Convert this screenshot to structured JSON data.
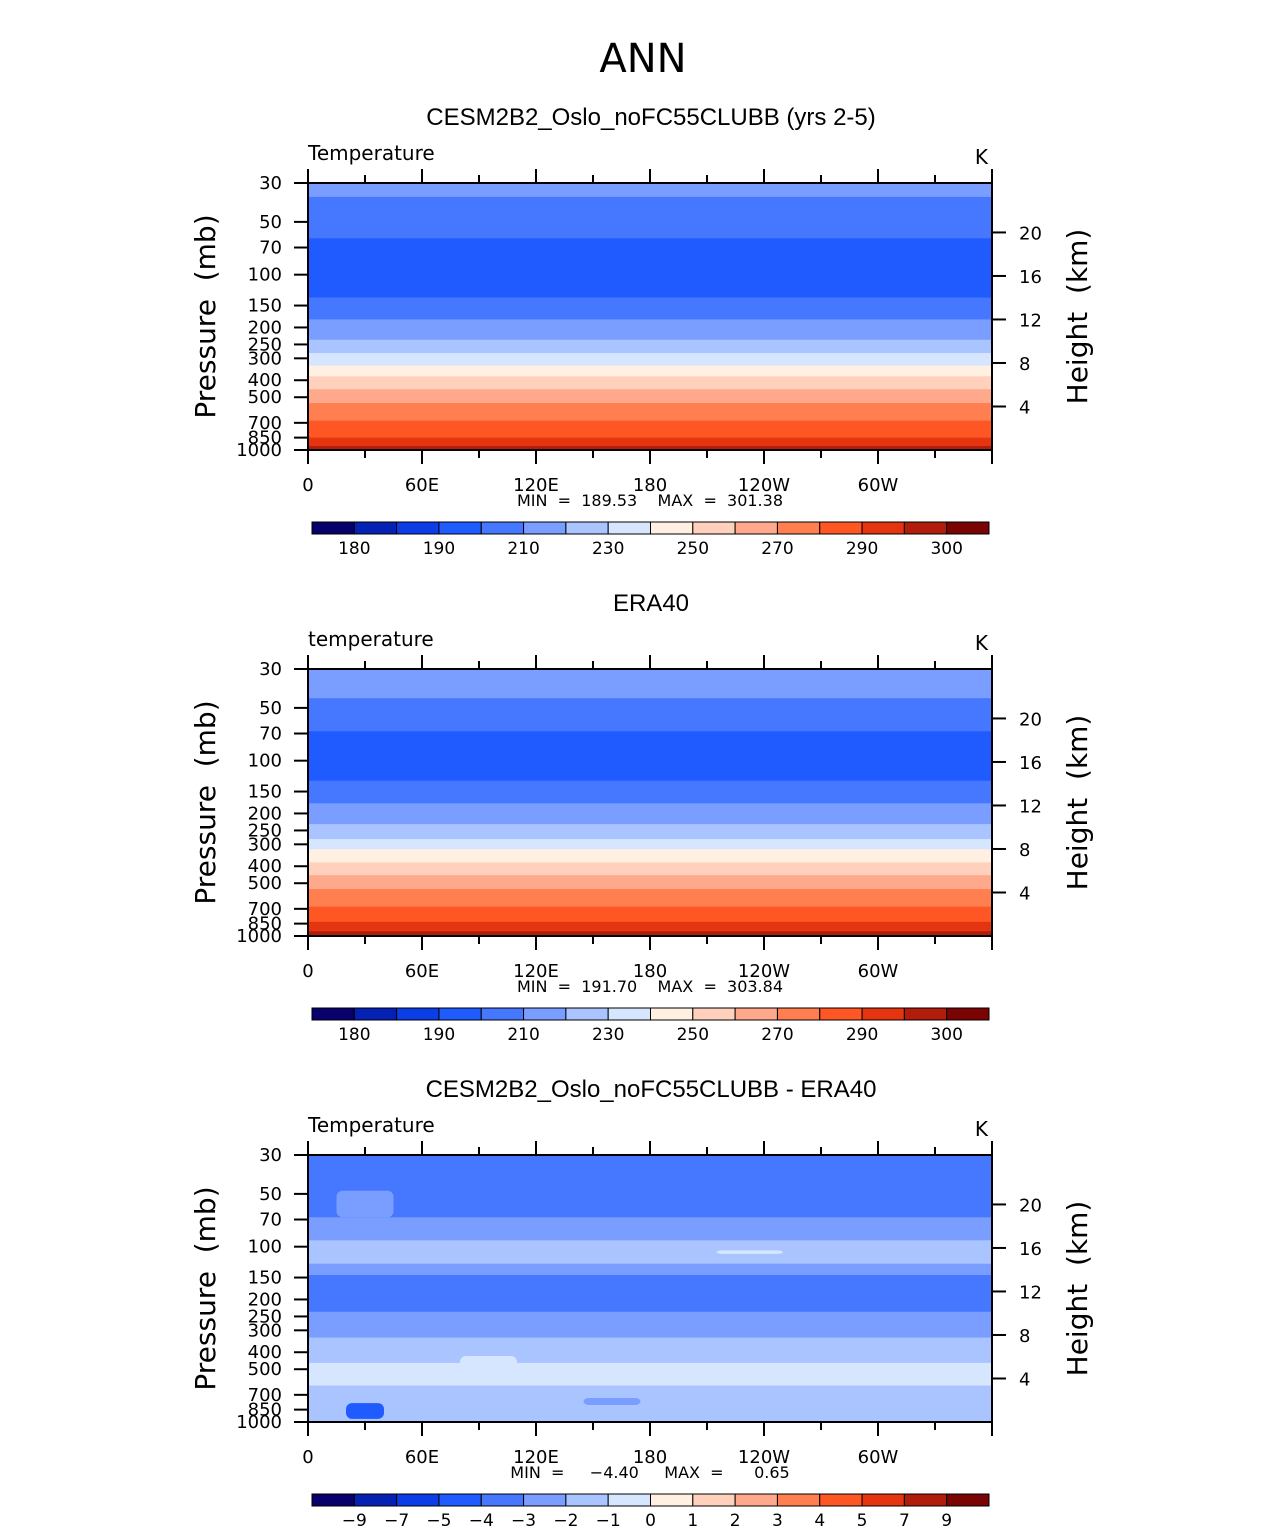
{
  "title": "ANN",
  "left_axis_label": "Pressure  (mb)",
  "right_axis_label": "Height  (km)",
  "chart_data": [
    {
      "type": "heatmap",
      "title": "CESM2B2_Oslo_noFC55CLUBB (yrs 2-5)",
      "variable": "Temperature",
      "units": "K",
      "stats": "MIN  =  189.53    MAX  =  301.38",
      "x_ticks": [
        "0",
        "60E",
        "120E",
        "180",
        "120W",
        "60W"
      ],
      "x_range_deg": [
        0,
        360
      ],
      "y_ticks": [
        "30",
        "50",
        "70",
        "100",
        "150",
        "200",
        "250",
        "300",
        "400",
        "500",
        "700",
        "850",
        "1000"
      ],
      "y_range_mb": [
        30,
        1000
      ],
      "y_scale": "log",
      "height_ticks": [
        "20",
        "16",
        "12",
        "8",
        "4"
      ],
      "colorbar_labels": [
        "180",
        "190",
        "210",
        "230",
        "250",
        "270",
        "290",
        "300"
      ],
      "colormap": [
        "#08006b",
        "#0421b3",
        "#0b3ee6",
        "#1f5bff",
        "#4678ff",
        "#7a9eff",
        "#a9c4ff",
        "#d6e6ff",
        "#fff0e2",
        "#ffd0bb",
        "#ffa98c",
        "#ff7f50",
        "#ff5724",
        "#e53410",
        "#b21c0a",
        "#7a0404"
      ],
      "bands": [
        {
          "p_top": 30,
          "p_bottom": 36,
          "color_index": 5
        },
        {
          "p_top": 36,
          "p_bottom": 62,
          "color_index": 4
        },
        {
          "p_top": 62,
          "p_bottom": 135,
          "color_index": 3
        },
        {
          "p_top": 135,
          "p_bottom": 180,
          "color_index": 4
        },
        {
          "p_top": 180,
          "p_bottom": 235,
          "color_index": 5
        },
        {
          "p_top": 235,
          "p_bottom": 280,
          "color_index": 6
        },
        {
          "p_top": 280,
          "p_bottom": 330,
          "color_index": 7
        },
        {
          "p_top": 330,
          "p_bottom": 380,
          "color_index": 8
        },
        {
          "p_top": 380,
          "p_bottom": 450,
          "color_index": 9
        },
        {
          "p_top": 450,
          "p_bottom": 540,
          "color_index": 10
        },
        {
          "p_top": 540,
          "p_bottom": 680,
          "color_index": 11
        },
        {
          "p_top": 680,
          "p_bottom": 850,
          "color_index": 12
        },
        {
          "p_top": 850,
          "p_bottom": 950,
          "color_index": 13
        },
        {
          "p_top": 950,
          "p_bottom": 1000,
          "color_index": 14
        }
      ]
    },
    {
      "type": "heatmap",
      "title": "ERA40",
      "variable": "temperature",
      "units": "K",
      "stats": "MIN  =  191.70    MAX  =  303.84",
      "x_ticks": [
        "0",
        "60E",
        "120E",
        "180",
        "120W",
        "60W"
      ],
      "x_range_deg": [
        0,
        360
      ],
      "y_ticks": [
        "30",
        "50",
        "70",
        "100",
        "150",
        "200",
        "250",
        "300",
        "400",
        "500",
        "700",
        "850",
        "1000"
      ],
      "y_range_mb": [
        30,
        1000
      ],
      "y_scale": "log",
      "height_ticks": [
        "20",
        "16",
        "12",
        "8",
        "4"
      ],
      "colorbar_labels": [
        "180",
        "190",
        "210",
        "230",
        "250",
        "270",
        "290",
        "300"
      ],
      "colormap": [
        "#08006b",
        "#0421b3",
        "#0b3ee6",
        "#1f5bff",
        "#4678ff",
        "#7a9eff",
        "#a9c4ff",
        "#d6e6ff",
        "#fff0e2",
        "#ffd0bb",
        "#ffa98c",
        "#ff7f50",
        "#ff5724",
        "#e53410",
        "#b21c0a",
        "#7a0404"
      ],
      "bands": [
        {
          "p_top": 30,
          "p_bottom": 44,
          "color_index": 5
        },
        {
          "p_top": 44,
          "p_bottom": 68,
          "color_index": 4
        },
        {
          "p_top": 68,
          "p_bottom": 130,
          "color_index": 3
        },
        {
          "p_top": 130,
          "p_bottom": 175,
          "color_index": 4
        },
        {
          "p_top": 175,
          "p_bottom": 230,
          "color_index": 5
        },
        {
          "p_top": 230,
          "p_bottom": 280,
          "color_index": 6
        },
        {
          "p_top": 280,
          "p_bottom": 320,
          "color_index": 7
        },
        {
          "p_top": 320,
          "p_bottom": 380,
          "color_index": 8
        },
        {
          "p_top": 380,
          "p_bottom": 450,
          "color_index": 9
        },
        {
          "p_top": 450,
          "p_bottom": 540,
          "color_index": 10
        },
        {
          "p_top": 540,
          "p_bottom": 680,
          "color_index": 11
        },
        {
          "p_top": 680,
          "p_bottom": 830,
          "color_index": 12
        },
        {
          "p_top": 830,
          "p_bottom": 940,
          "color_index": 13
        },
        {
          "p_top": 940,
          "p_bottom": 1000,
          "color_index": 14
        }
      ]
    },
    {
      "type": "heatmap",
      "title": "CESM2B2_Oslo_noFC55CLUBB - ERA40",
      "variable": "Temperature",
      "units": "K",
      "stats": "MIN  =     −4.40     MAX  =      0.65",
      "x_ticks": [
        "0",
        "60E",
        "120E",
        "180",
        "120W",
        "60W"
      ],
      "x_range_deg": [
        0,
        360
      ],
      "y_ticks": [
        "30",
        "50",
        "70",
        "100",
        "150",
        "200",
        "250",
        "300",
        "400",
        "500",
        "700",
        "850",
        "1000"
      ],
      "y_range_mb": [
        30,
        1000
      ],
      "y_scale": "log",
      "height_ticks": [
        "20",
        "16",
        "12",
        "8",
        "4"
      ],
      "colorbar_labels": [
        "−9",
        "−7",
        "−5",
        "−4",
        "−3",
        "−2",
        "−1",
        "0",
        "1",
        "2",
        "3",
        "4",
        "5",
        "7",
        "9"
      ],
      "colormap": [
        "#08006b",
        "#0421b3",
        "#0b3ee6",
        "#1f5bff",
        "#4678ff",
        "#7a9eff",
        "#a9c4ff",
        "#d6e6ff",
        "#fff0e2",
        "#ffd0bb",
        "#ffa98c",
        "#ff7f50",
        "#ff5724",
        "#e53410",
        "#b21c0a",
        "#7a0404"
      ],
      "bands": [
        {
          "p_top": 30,
          "p_bottom": 68,
          "color_index": 4
        },
        {
          "p_top": 68,
          "p_bottom": 92,
          "color_index": 5
        },
        {
          "p_top": 92,
          "p_bottom": 125,
          "color_index": 6
        },
        {
          "p_top": 125,
          "p_bottom": 145,
          "color_index": 5
        },
        {
          "p_top": 145,
          "p_bottom": 235,
          "color_index": 4
        },
        {
          "p_top": 235,
          "p_bottom": 330,
          "color_index": 5
        },
        {
          "p_top": 330,
          "p_bottom": 460,
          "color_index": 6
        },
        {
          "p_top": 460,
          "p_bottom": 620,
          "color_index": 7
        },
        {
          "p_top": 620,
          "p_bottom": 900,
          "color_index": 6
        },
        {
          "p_top": 900,
          "p_bottom": 1000,
          "color_index": 6
        }
      ],
      "features": [
        {
          "lon_start": 15,
          "lon_end": 45,
          "p_top": 48,
          "p_bottom": 68,
          "color_index": 5
        },
        {
          "lon_start": 215,
          "lon_end": 250,
          "p_top": 105,
          "p_bottom": 110,
          "color_index": 7
        },
        {
          "lon_start": 20,
          "lon_end": 40,
          "p_top": 780,
          "p_bottom": 960,
          "color_index": 3
        },
        {
          "lon_start": 80,
          "lon_end": 110,
          "p_top": 420,
          "p_bottom": 560,
          "color_index": 7
        },
        {
          "lon_start": 145,
          "lon_end": 175,
          "p_top": 730,
          "p_bottom": 800,
          "color_index": 5
        }
      ]
    }
  ]
}
